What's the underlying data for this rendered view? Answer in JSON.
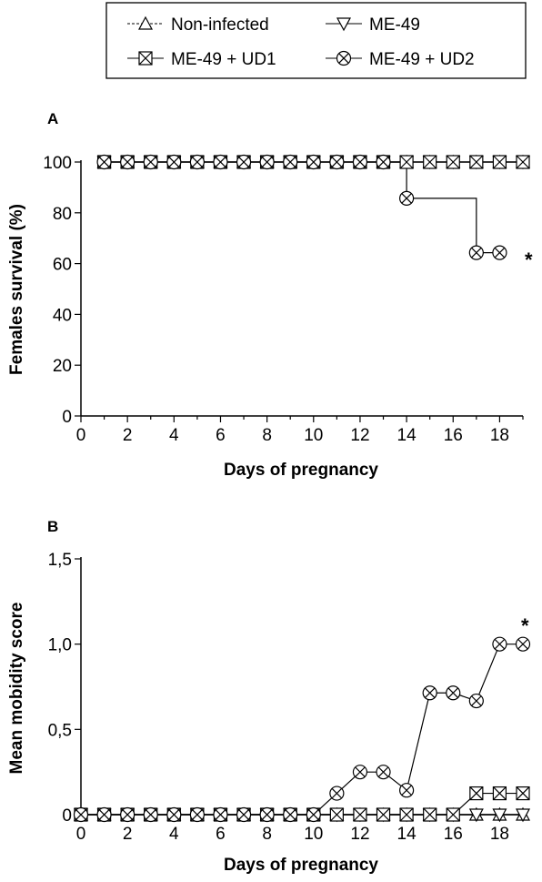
{
  "legend": {
    "items": [
      {
        "key": "noninf",
        "marker": "triangle-up-icon",
        "label": "Non-infected"
      },
      {
        "key": "me49",
        "marker": "triangle-down-icon",
        "label": "ME-49"
      },
      {
        "key": "ud1",
        "marker": "boxed-x-icon",
        "label": "ME-49 + UD1"
      },
      {
        "key": "ud2",
        "marker": "circled-x-icon",
        "label": "ME-49 + UD2"
      }
    ]
  },
  "chart_data": [
    {
      "type": "line",
      "panel_label": "A",
      "step": true,
      "xlabel": "Days of pregnancy",
      "ylabel": "Females survival (%)",
      "xlim": [
        0,
        19
      ],
      "ylim": [
        0,
        100
      ],
      "x_ticks": [
        0,
        2,
        4,
        6,
        8,
        10,
        12,
        14,
        16,
        18
      ],
      "y_ticks": [
        0,
        20,
        40,
        60,
        80,
        100
      ],
      "x_tick_labels": [
        "0",
        "2",
        "4",
        "6",
        "8",
        "10",
        "12",
        "14",
        "16",
        "18"
      ],
      "y_tick_labels": [
        "0",
        "20",
        "40",
        "60",
        "80",
        "100"
      ],
      "grid": false,
      "annotation": "*",
      "series": [
        {
          "key": "noninf",
          "marker": "triangle-up",
          "x": [
            1,
            2,
            3,
            4,
            5,
            6,
            7,
            8,
            9,
            10,
            11,
            12,
            13,
            14,
            15,
            16,
            17,
            18,
            19
          ],
          "y": [
            100,
            100,
            100,
            100,
            100,
            100,
            100,
            100,
            100,
            100,
            100,
            100,
            100,
            100,
            100,
            100,
            100,
            100,
            100
          ]
        },
        {
          "key": "me49",
          "marker": "triangle-down",
          "x": [
            1,
            2,
            3,
            4,
            5,
            6,
            7,
            8,
            9,
            10,
            11,
            12,
            13,
            14,
            15,
            16,
            17,
            18,
            19
          ],
          "y": [
            100,
            100,
            100,
            100,
            100,
            100,
            100,
            100,
            100,
            100,
            100,
            100,
            100,
            100,
            100,
            100,
            100,
            100,
            100
          ]
        },
        {
          "key": "ud1",
          "marker": "boxed-x",
          "x": [
            1,
            2,
            3,
            4,
            5,
            6,
            7,
            8,
            9,
            10,
            11,
            12,
            13,
            14,
            15,
            16,
            17,
            18,
            19
          ],
          "y": [
            100,
            100,
            100,
            100,
            100,
            100,
            100,
            100,
            100,
            100,
            100,
            100,
            100,
            100,
            100,
            100,
            100,
            100,
            100
          ]
        },
        {
          "key": "ud2",
          "marker": "circled-x",
          "x": [
            1,
            2,
            3,
            4,
            5,
            6,
            7,
            8,
            9,
            10,
            11,
            12,
            13,
            14,
            17,
            18
          ],
          "y": [
            100,
            100,
            100,
            100,
            100,
            100,
            100,
            100,
            100,
            100,
            100,
            100,
            100,
            85.7,
            64.3,
            64.3
          ]
        }
      ]
    },
    {
      "type": "line",
      "panel_label": "B",
      "step": false,
      "xlabel": "Days of pregnancy",
      "ylabel": "Mean mobidity score",
      "xlim": [
        0,
        19
      ],
      "ylim": [
        0,
        1.5
      ],
      "x_ticks": [
        0,
        2,
        4,
        6,
        8,
        10,
        12,
        14,
        16,
        18
      ],
      "y_ticks": [
        0,
        0.5,
        1.0,
        1.5
      ],
      "x_tick_labels": [
        "0",
        "2",
        "4",
        "6",
        "8",
        "10",
        "12",
        "14",
        "16",
        "18"
      ],
      "y_tick_labels": [
        "0",
        "0,5",
        "1,0",
        "1,5"
      ],
      "grid": false,
      "annotation": "*",
      "series": [
        {
          "key": "noninf",
          "marker": "triangle-up",
          "x": [
            0,
            1,
            2,
            3,
            4,
            5,
            6,
            7,
            8,
            9,
            10,
            11,
            12,
            13,
            14,
            15,
            16,
            17,
            18,
            19
          ],
          "y": [
            0,
            0,
            0,
            0,
            0,
            0,
            0,
            0,
            0,
            0,
            0,
            0,
            0,
            0,
            0,
            0,
            0,
            0,
            0,
            0
          ]
        },
        {
          "key": "me49",
          "marker": "triangle-down",
          "x": [
            0,
            1,
            2,
            3,
            4,
            5,
            6,
            7,
            8,
            9,
            10,
            11,
            12,
            13,
            14,
            15,
            16,
            17,
            18,
            19
          ],
          "y": [
            0,
            0,
            0,
            0,
            0,
            0,
            0,
            0,
            0,
            0,
            0,
            0,
            0,
            0,
            0,
            0,
            0,
            0,
            0,
            0
          ]
        },
        {
          "key": "ud1",
          "marker": "boxed-x",
          "x": [
            0,
            1,
            2,
            3,
            4,
            5,
            6,
            7,
            8,
            9,
            10,
            11,
            12,
            13,
            14,
            15,
            16,
            17,
            18,
            19
          ],
          "y": [
            0,
            0,
            0,
            0,
            0,
            0,
            0,
            0,
            0,
            0,
            0,
            0,
            0,
            0,
            0,
            0,
            0,
            0.125,
            0.125,
            0.125
          ]
        },
        {
          "key": "ud2",
          "marker": "circled-x",
          "x": [
            0,
            1,
            2,
            3,
            4,
            5,
            6,
            7,
            8,
            9,
            10,
            11,
            12,
            13,
            14,
            15,
            16,
            17,
            18,
            19
          ],
          "y": [
            0,
            0,
            0,
            0,
            0,
            0,
            0,
            0,
            0,
            0,
            0,
            0.125,
            0.25,
            0.25,
            0.143,
            0.714,
            0.714,
            0.667,
            1.0,
            1.0
          ]
        }
      ]
    }
  ]
}
